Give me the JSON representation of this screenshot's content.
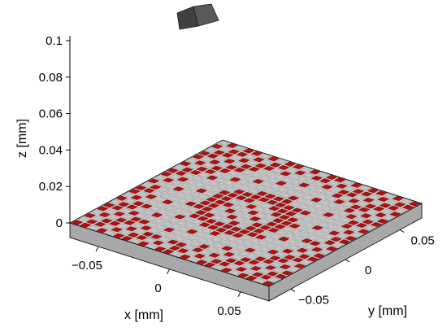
{
  "chart_data": {
    "type": "surface3d",
    "xlabel": "x [mm]",
    "ylabel": "y [mm]",
    "zlabel": "z [mm]",
    "xlim": [
      -0.07,
      0.07
    ],
    "ylim": [
      -0.07,
      0.07
    ],
    "zlim": [
      0,
      0.1
    ],
    "x_ticks": [
      -0.05,
      0,
      0.05
    ],
    "x_tick_labels": [
      "−0.05",
      "0",
      "0.05"
    ],
    "y_ticks": [
      -0.05,
      0,
      0.05
    ],
    "y_tick_labels": [
      "−0.05",
      "0",
      "0.05"
    ],
    "z_ticks": [
      0,
      0.02,
      0.04,
      0.06,
      0.08,
      0.1
    ],
    "z_tick_labels": [
      "0",
      "0.02",
      "0.04",
      "0.06",
      "0.08",
      "0.1"
    ],
    "grid": false,
    "grid_cells": 24,
    "cell_fill_fraction": 0.75,
    "substrate_thickness_mm": 0.008,
    "pattern": {
      "center_disk_radius_mm": 0.02,
      "ring_inner_radius_mm": 0.02,
      "ring_outer_radius_mm": 0.029,
      "outer_band_radius_mm": 0.056
    },
    "colors": {
      "pixel_red": "#b01010",
      "pixel_red_edge": "#5a0000",
      "pixel_gray": "#c4c4c4",
      "pixel_gray_edge": "#8a8a8a",
      "substrate_top": "#c8c8c8",
      "substrate_side": "#a8a8a8",
      "object": "#404040",
      "axis": "#000000"
    }
  }
}
